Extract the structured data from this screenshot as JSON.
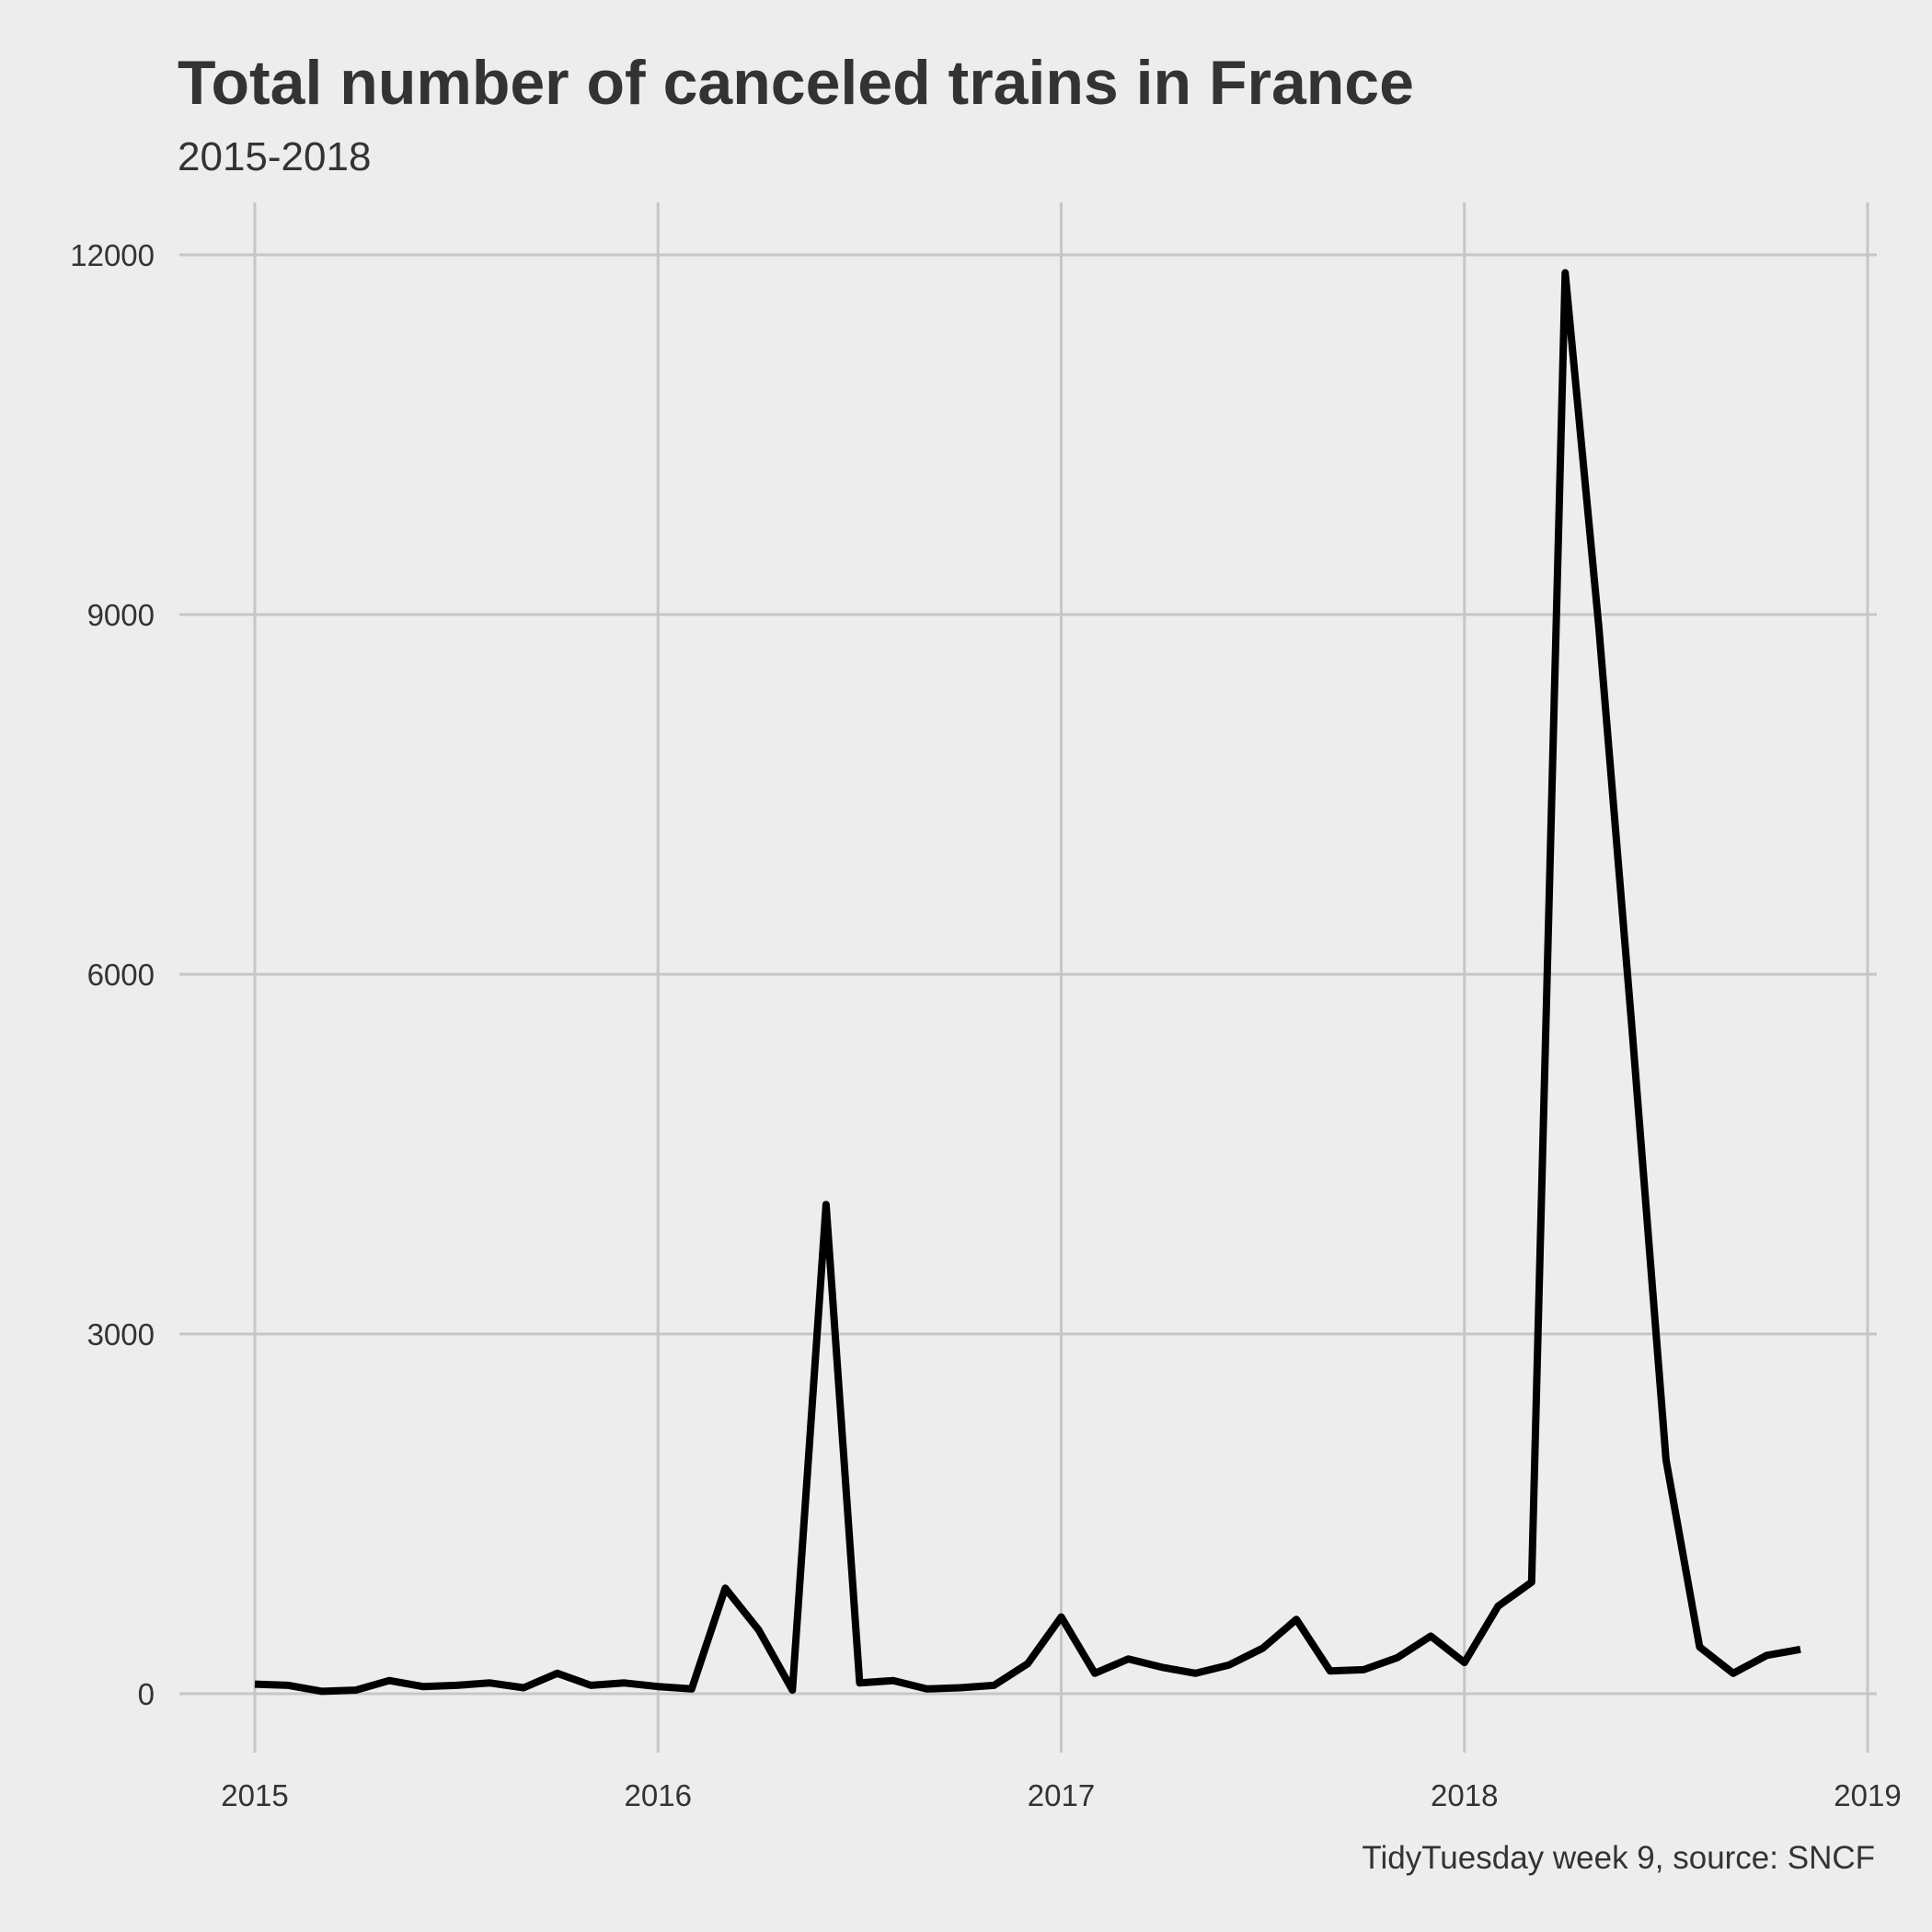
{
  "chart_data": {
    "type": "line",
    "title": "Total number of canceled trains in France",
    "subtitle": "2015-2018",
    "caption": "TidyTuesday week 9, source: SNCF",
    "xlabel": "",
    "ylabel": "",
    "x_ticks": [
      "2015",
      "2016",
      "2017",
      "2018",
      "2019"
    ],
    "y_ticks": [
      0,
      3000,
      6000,
      9000,
      12000
    ],
    "xlim": [
      "2015-01",
      "2019-01"
    ],
    "ylim": [
      0,
      12000
    ],
    "grid": true,
    "legend": "none",
    "line_color": "#000000",
    "series": [
      {
        "x": [
          "2015-01",
          "2015-02",
          "2015-03",
          "2015-04",
          "2015-05",
          "2015-06",
          "2015-07",
          "2015-08",
          "2015-09",
          "2015-10",
          "2015-11",
          "2015-12",
          "2016-01",
          "2016-02",
          "2016-03",
          "2016-04",
          "2016-05",
          "2016-06",
          "2016-07",
          "2016-08",
          "2016-09",
          "2016-10",
          "2016-11",
          "2016-12",
          "2017-01",
          "2017-02",
          "2017-03",
          "2017-04",
          "2017-05",
          "2017-06",
          "2017-07",
          "2017-08",
          "2017-09",
          "2017-10",
          "2017-11",
          "2017-12",
          "2018-01",
          "2018-02",
          "2018-03",
          "2018-04",
          "2018-05",
          "2018-06",
          "2018-07",
          "2018-08",
          "2018-09",
          "2018-10",
          "2018-11"
        ],
        "values": [
          80,
          70,
          20,
          30,
          110,
          60,
          70,
          90,
          50,
          170,
          70,
          90,
          60,
          40,
          880,
          530,
          30,
          4080,
          90,
          110,
          40,
          50,
          70,
          250,
          640,
          170,
          290,
          220,
          170,
          240,
          380,
          620,
          190,
          200,
          300,
          480,
          260,
          730,
          930,
          11850,
          8900,
          5500,
          1950,
          390,
          170,
          320,
          370
        ]
      }
    ]
  }
}
